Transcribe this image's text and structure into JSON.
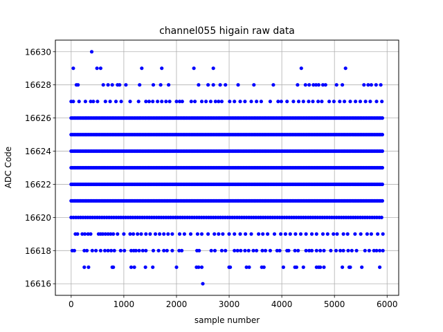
{
  "chart_data": {
    "type": "scatter",
    "title": "channel055 higain raw data",
    "xlabel": "sample number",
    "ylabel": "ADC Code",
    "xlim": [
      -300,
      6220
    ],
    "ylim": [
      16615.3,
      16630.7
    ],
    "xticks": [
      0,
      1000,
      2000,
      3000,
      4000,
      5000,
      6000
    ],
    "yticks": [
      16616,
      16618,
      16620,
      16622,
      16624,
      16626,
      16628,
      16630
    ],
    "grid": true,
    "marker_color": "#0000ff",
    "n_samples": 5940,
    "series": [
      {
        "dense_levels": [
          16621,
          16622,
          16623,
          16624,
          16625,
          16626
        ],
        "semi_dense_level": 16620,
        "sparse_points": [
          {
            "y": 16630,
            "x": [
              390
            ]
          },
          {
            "y": 16629,
            "x": [
              40,
              490,
              560,
              1340,
              1720,
              2330,
              2700,
              4370,
              5210
            ]
          },
          {
            "y": 16628,
            "x": [
              100,
              130,
              610,
              700,
              780,
              880,
              920,
              1040,
              1300,
              1560,
              1700,
              1850,
              2420,
              2600,
              2700,
              2830,
              2930,
              3170,
              3470,
              3840,
              4300,
              4450,
              4520,
              4600,
              4650,
              4700,
              4780,
              4830,
              5040,
              5150,
              5560,
              5640,
              5700,
              5790,
              5880
            ]
          },
          {
            "y": 16627,
            "x": [
              0,
              40,
              150,
              270,
              370,
              420,
              500,
              650,
              740,
              850,
              950,
              1120,
              1280,
              1420,
              1480,
              1550,
              1640,
              1720,
              1800,
              1870,
              2000,
              2060,
              2110,
              2280,
              2350,
              2480,
              2560,
              2650,
              2740,
              2800,
              2860,
              3010,
              3100,
              3210,
              3300,
              3420,
              3520,
              3610,
              3780,
              3930,
              3990,
              4100,
              4220,
              4320,
              4410,
              4510,
              4590,
              4690,
              4760,
              4900,
              4990,
              5100,
              5190,
              5300,
              5400,
              5490,
              5590,
              5680,
              5800,
              5900
            ]
          },
          {
            "y": 16619,
            "x": [
              80,
              120,
              210,
              260,
              320,
              370,
              520,
              560,
              600,
              650,
              700,
              750,
              800,
              880,
              1000,
              1120,
              1180,
              1260,
              1330,
              1420,
              1500,
              1600,
              1680,
              1760,
              1840,
              1920,
              2060,
              2150,
              2270,
              2400,
              2480,
              2600,
              2720,
              2800,
              2880,
              3000,
              3100,
              3210,
              3310,
              3420,
              3560,
              3640,
              3730,
              3860,
              3980,
              4070,
              4160,
              4260,
              4360,
              4460,
              4570,
              4660,
              4780,
              4870,
              4980,
              5050,
              5170,
              5250,
              5390,
              5500,
              5620,
              5700,
              5820,
              5920
            ]
          },
          {
            "y": 16618,
            "x": [
              20,
              60,
              250,
              300,
              400,
              470,
              560,
              640,
              700,
              760,
              820,
              940,
              1010,
              1140,
              1190,
              1230,
              1290,
              1360,
              1420,
              1560,
              1660,
              1760,
              1820,
              1920,
              2050,
              2100,
              2390,
              2430,
              2660,
              2730,
              2860,
              2930,
              3100,
              3160,
              3220,
              3300,
              3370,
              3460,
              3520,
              3630,
              3690,
              3780,
              3910,
              3960,
              4100,
              4130,
              4250,
              4310,
              4460,
              4520,
              4570,
              4660,
              4730,
              4800,
              4930,
              5030,
              5110,
              5170,
              5260,
              5330,
              5420,
              5580,
              5660,
              5750,
              5800,
              5860,
              5920
            ]
          },
          {
            "y": 16617,
            "x": [
              250,
              330,
              780,
              800,
              1140,
              1200,
              1410,
              1550,
              2000,
              2380,
              2420,
              2480,
              3000,
              3020,
              3330,
              3380,
              3620,
              3660,
              4030,
              4250,
              4280,
              4410,
              4660,
              4700,
              4730,
              4800,
              5150,
              5280,
              5300,
              5520,
              5860
            ]
          },
          {
            "y": 16616,
            "x": [
              2500
            ]
          }
        ]
      }
    ]
  }
}
